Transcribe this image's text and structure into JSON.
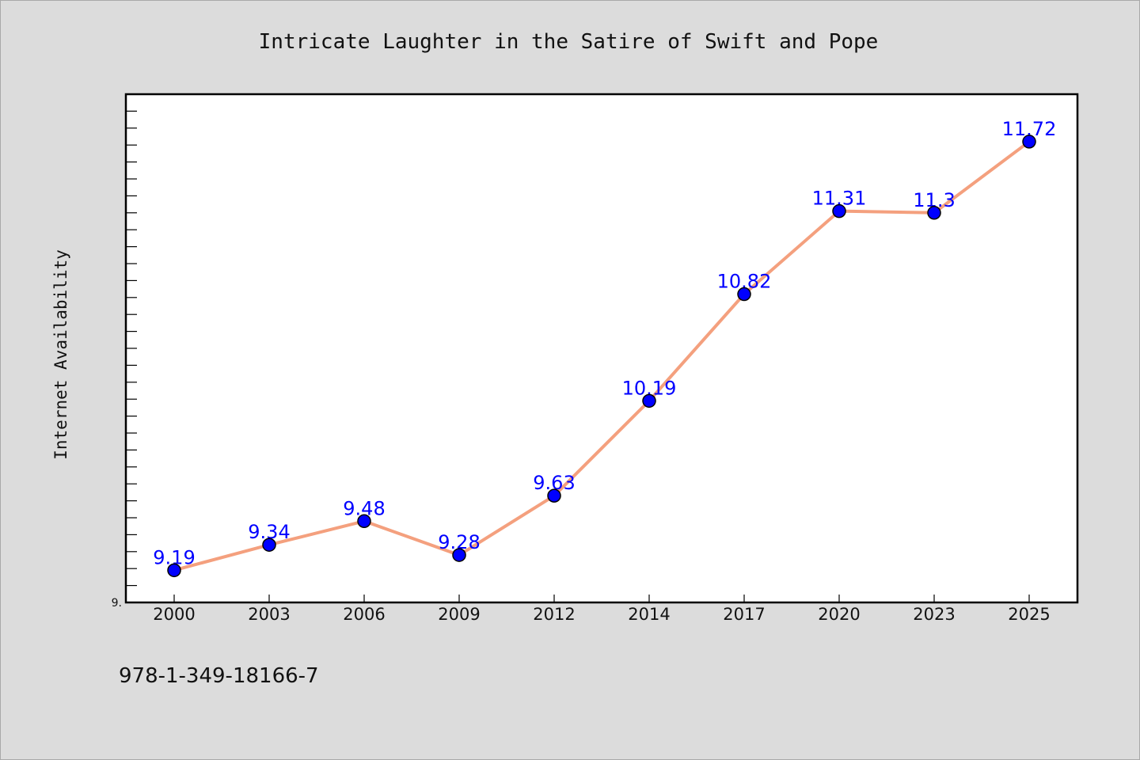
{
  "chart_data": {
    "type": "line",
    "title": "Intricate Laughter in the Satire of Swift and Pope",
    "xlabel": "",
    "ylabel": "Internet Availability",
    "categories": [
      "2000",
      "2003",
      "2006",
      "2009",
      "2012",
      "2014",
      "2017",
      "2020",
      "2023",
      "2025"
    ],
    "series": [
      {
        "values": [
          9.19,
          9.34,
          9.48,
          9.28,
          9.63,
          10.19,
          10.82,
          11.31,
          11.3,
          11.72
        ],
        "data_labels": [
          "9.19",
          "9.34",
          "9.48",
          "9.28",
          "9.63",
          "10.19",
          "10.82",
          "11.31",
          "11.3",
          "11.72"
        ]
      }
    ],
    "ylim": [
      9.0,
      12.0
    ],
    "y_tick_label": "9.",
    "grid": false,
    "legend": "none",
    "colors": {
      "line": "#f4a07e",
      "marker": "#0000ff",
      "marker_edge": "#000000",
      "label": "#0000ff",
      "background": "#dcdcdc",
      "plot_bg": "#ffffff"
    }
  },
  "footer_text": "978-1-349-18166-7"
}
